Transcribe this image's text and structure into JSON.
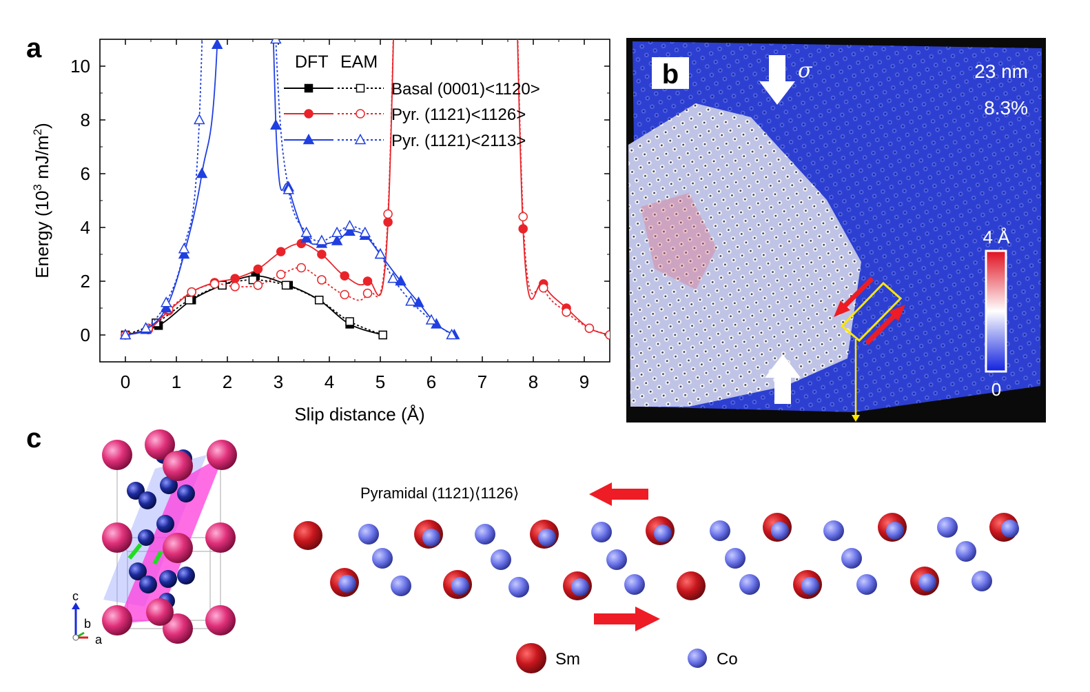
{
  "panels": {
    "a": "a",
    "b": "b",
    "c": "c"
  },
  "chart_data": {
    "type": "line",
    "xlabel": "Slip distance (Å)",
    "ylabel_main": "Energy (10",
    "ylabel_sup": "3",
    "ylabel_tail": " mJ/m",
    "ylabel_sup2": "2",
    "ylabel_end": ")",
    "xlim": [
      -0.5,
      9.5
    ],
    "ylim": [
      -1,
      11
    ],
    "xticks": [
      0,
      1,
      2,
      3,
      4,
      5,
      6,
      7,
      8,
      9
    ],
    "yticks": [
      0,
      2,
      4,
      6,
      8,
      10
    ],
    "legend_header": [
      "DFT",
      "EAM"
    ],
    "legend_labels": [
      "Basal (0001)<1120>",
      "Pyr. (1121)<1126>",
      "Pyr. (1121)<2113>"
    ],
    "series": [
      {
        "method": "DFT",
        "color": "#000000",
        "marker": "square",
        "filled": true,
        "points": [
          [
            0,
            0
          ],
          [
            0.65,
            0.35
          ],
          [
            1.3,
            1.3
          ],
          [
            1.9,
            1.85
          ],
          [
            2.55,
            2.2
          ],
          [
            3.2,
            1.85
          ],
          [
            3.8,
            1.3
          ],
          [
            4.4,
            0.4
          ],
          [
            5.05,
            0
          ]
        ]
      },
      {
        "method": "EAM",
        "color": "#000000",
        "marker": "square",
        "filled": false,
        "points": [
          [
            0,
            0
          ],
          [
            0.6,
            0.45
          ],
          [
            1.25,
            1.3
          ],
          [
            1.9,
            1.85
          ],
          [
            2.5,
            2.05
          ],
          [
            3.15,
            1.85
          ],
          [
            3.8,
            1.3
          ],
          [
            4.4,
            0.5
          ],
          [
            5.05,
            0
          ]
        ]
      },
      {
        "method": "DFT",
        "color": "#e8242a",
        "marker": "circle",
        "filled": true,
        "points": [
          [
            0,
            0
          ],
          [
            0.45,
            0.2
          ],
          [
            0.85,
            0.9
          ],
          [
            1.3,
            1.6
          ],
          [
            1.75,
            1.95
          ],
          [
            2.15,
            2.1
          ],
          [
            2.6,
            2.45
          ],
          [
            3.05,
            3.1
          ],
          [
            3.45,
            3.4
          ],
          [
            3.85,
            3.0
          ],
          [
            4.3,
            2.2
          ],
          [
            4.75,
            2.0
          ],
          [
            5.15,
            4.2
          ],
          [
            7.8,
            3.95
          ],
          [
            8.2,
            1.9
          ],
          [
            8.65,
            1.0
          ],
          [
            9.1,
            0.25
          ],
          [
            9.5,
            0
          ]
        ]
      },
      {
        "method": "EAM",
        "color": "#e8242a",
        "marker": "circle",
        "filled": false,
        "points": [
          [
            0,
            0
          ],
          [
            0.45,
            0.25
          ],
          [
            0.85,
            0.95
          ],
          [
            1.3,
            1.6
          ],
          [
            1.75,
            1.9
          ],
          [
            2.15,
            1.8
          ],
          [
            2.6,
            1.85
          ],
          [
            3.05,
            2.25
          ],
          [
            3.45,
            2.5
          ],
          [
            3.85,
            2.05
          ],
          [
            4.3,
            1.5
          ],
          [
            4.75,
            1.55
          ],
          [
            5.15,
            4.5
          ],
          [
            7.8,
            4.4
          ],
          [
            8.2,
            1.75
          ],
          [
            8.65,
            0.85
          ],
          [
            9.1,
            0.25
          ],
          [
            9.5,
            0
          ]
        ]
      },
      {
        "method": "DFT",
        "color": "#1f3fe0",
        "marker": "triangle",
        "filled": true,
        "points": [
          [
            0,
            0
          ],
          [
            0.4,
            0.2
          ],
          [
            0.8,
            1.0
          ],
          [
            1.15,
            3.0
          ],
          [
            1.5,
            6.0
          ],
          [
            1.8,
            10.8
          ],
          [
            2.95,
            7.8
          ],
          [
            3.2,
            5.5
          ],
          [
            3.55,
            3.6
          ],
          [
            3.85,
            3.4
          ],
          [
            4.15,
            3.5
          ],
          [
            4.4,
            3.85
          ],
          [
            4.7,
            3.7
          ],
          [
            5.0,
            3.0
          ],
          [
            5.4,
            2.0
          ],
          [
            5.75,
            1.2
          ],
          [
            6.1,
            0.4
          ],
          [
            6.45,
            0
          ]
        ]
      },
      {
        "method": "EAM",
        "color": "#1f3fe0",
        "marker": "triangle",
        "filled": false,
        "points": [
          [
            0,
            0
          ],
          [
            0.4,
            0.25
          ],
          [
            0.8,
            1.2
          ],
          [
            1.15,
            3.2
          ],
          [
            1.45,
            8.0
          ],
          [
            2.95,
            11.0
          ],
          [
            3.2,
            5.4
          ],
          [
            3.55,
            3.8
          ],
          [
            3.85,
            3.5
          ],
          [
            4.15,
            3.8
          ],
          [
            4.4,
            4.05
          ],
          [
            4.7,
            3.8
          ],
          [
            5.0,
            3.0
          ],
          [
            5.25,
            2.1
          ],
          [
            5.6,
            1.25
          ],
          [
            6.0,
            0.55
          ],
          [
            6.4,
            0
          ]
        ]
      }
    ]
  },
  "panel_b": {
    "sigma": "σ",
    "size": "23 nm",
    "strain": "8.3%",
    "colorbar_max": "4 Å",
    "colorbar_min": "0",
    "colors": {
      "background": "#0a0a0a",
      "field": "#2c3fd0",
      "highlight": "#ffffff",
      "box": "#ffe600",
      "arrow": "#ee1c24"
    }
  },
  "panel_c": {
    "axis_labels": {
      "c": "c",
      "b": "b",
      "a": "a"
    },
    "title": "Pyramidal (1121)⟨1126⟩",
    "legend": [
      {
        "label": "Sm",
        "color": "#c8161d"
      },
      {
        "label": "Co",
        "color": "#6a73e8"
      }
    ],
    "arrow_color": "#ee1c24"
  }
}
